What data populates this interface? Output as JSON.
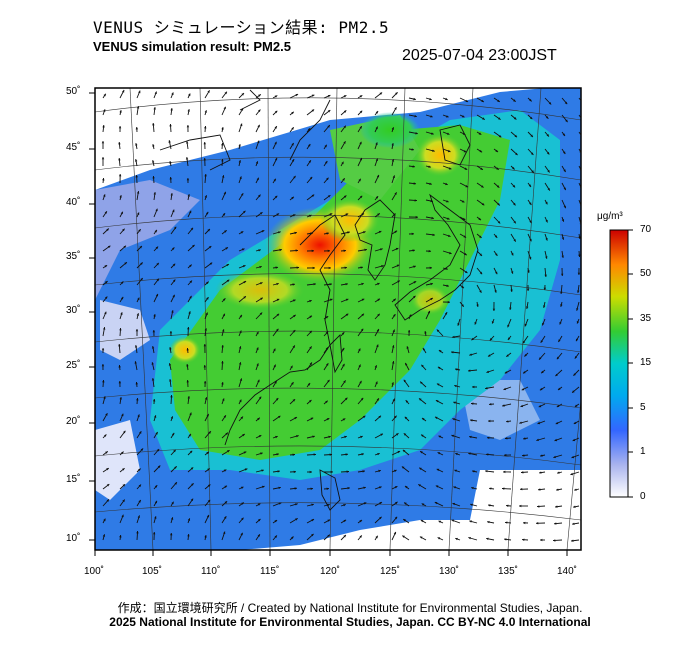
{
  "header": {
    "title_jp": "VENUS シミュレーション結果: PM2.5",
    "title_en": "VENUS simulation result: PM2.5",
    "timestamp": "2025-07-04 23:00JST"
  },
  "map": {
    "lon_ticks": [
      "100˚",
      "105˚",
      "110˚",
      "115˚",
      "120˚",
      "125˚",
      "130˚",
      "135˚",
      "140˚"
    ],
    "lat_ticks": [
      "50˚",
      "45˚",
      "40˚",
      "35˚",
      "30˚",
      "25˚",
      "20˚",
      "15˚",
      "10˚"
    ],
    "variable": "PM2.5",
    "layers": [
      "concentration-field",
      "wind-vectors",
      "coastlines"
    ]
  },
  "colorbar": {
    "unit": "μg/m³",
    "labels": [
      "70",
      "50",
      "35",
      "15",
      "5",
      "1",
      "0"
    ],
    "colors": [
      "#cc0000",
      "#ff6600",
      "#ffcc00",
      "#33cc33",
      "#00cccc",
      "#3366ff",
      "#ffffff"
    ]
  },
  "footer": {
    "credit": "作成：国立環境研究所 / Created by National Institute for Environmental Studies, Japan.",
    "license": "2025 National Institute for Environmental Studies, Japan. CC BY-NC 4.0 International"
  }
}
